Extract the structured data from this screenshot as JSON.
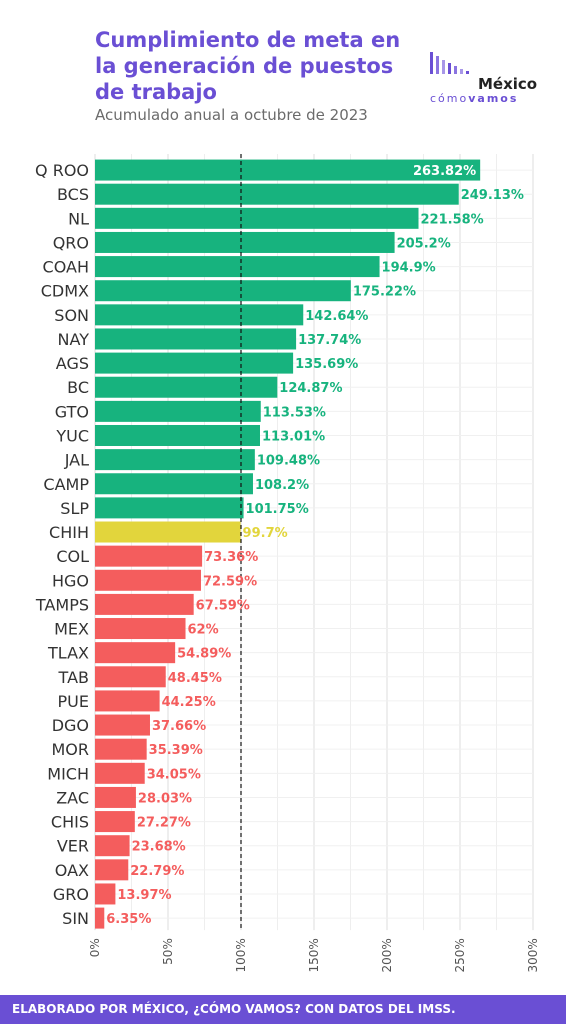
{
  "title": "Cumplimiento de meta en la generación de puestos de trabajo",
  "subtitle": "Acumulado anual a octubre de 2023",
  "logo": {
    "word": "México",
    "sub_light": "cómo",
    "sub_bold": "vamos"
  },
  "footer": "ELABORADO POR MÉXICO, ¿CÓMO VAMOS? CON DATOS DEL IMSS.",
  "colors": {
    "above": "#17b37e",
    "near": "#e2d53c",
    "below": "#f45d5d",
    "accent": "#6a4fd4"
  },
  "chart_data": {
    "type": "bar",
    "orientation": "horizontal",
    "title": "Cumplimiento de meta en la generación de puestos de trabajo",
    "subtitle": "Acumulado anual a octubre de 2023",
    "xlabel": "",
    "ylabel": "",
    "xlim": [
      0,
      300
    ],
    "x_ticks": [
      "0%",
      "50%",
      "100%",
      "150%",
      "200%",
      "250%",
      "300%"
    ],
    "x_tick_values": [
      0,
      50,
      100,
      150,
      200,
      250,
      300
    ],
    "reference_line": 100,
    "grid": true,
    "categories": [
      "Q ROO",
      "BCS",
      "NL",
      "QRO",
      "COAH",
      "CDMX",
      "SON",
      "NAY",
      "AGS",
      "BC",
      "GTO",
      "YUC",
      "JAL",
      "CAMP",
      "SLP",
      "CHIH",
      "COL",
      "HGO",
      "TAMPS",
      "MEX",
      "TLAX",
      "TAB",
      "PUE",
      "DGO",
      "MOR",
      "MICH",
      "ZAC",
      "CHIS",
      "VER",
      "OAX",
      "GRO",
      "SIN"
    ],
    "values": [
      263.82,
      249.13,
      221.58,
      205.2,
      194.9,
      175.22,
      142.64,
      137.74,
      135.69,
      124.87,
      113.53,
      113.01,
      109.48,
      108.2,
      101.75,
      99.7,
      73.36,
      72.59,
      67.59,
      62,
      54.89,
      48.45,
      44.25,
      37.66,
      35.39,
      34.05,
      28.03,
      27.27,
      23.68,
      22.79,
      13.97,
      6.35
    ],
    "labels": [
      "263.82%",
      "249.13%",
      "221.58%",
      "205.2%",
      "194.9%",
      "175.22%",
      "142.64%",
      "137.74%",
      "135.69%",
      "124.87%",
      "113.53%",
      "113.01%",
      "109.48%",
      "108.2%",
      "101.75%",
      "99.7%",
      "73.36%",
      "72.59%",
      "67.59%",
      "62%",
      "54.89%",
      "48.45%",
      "44.25%",
      "37.66%",
      "35.39%",
      "34.05%",
      "28.03%",
      "27.27%",
      "23.68%",
      "22.79%",
      "13.97%",
      "6.35%"
    ]
  }
}
